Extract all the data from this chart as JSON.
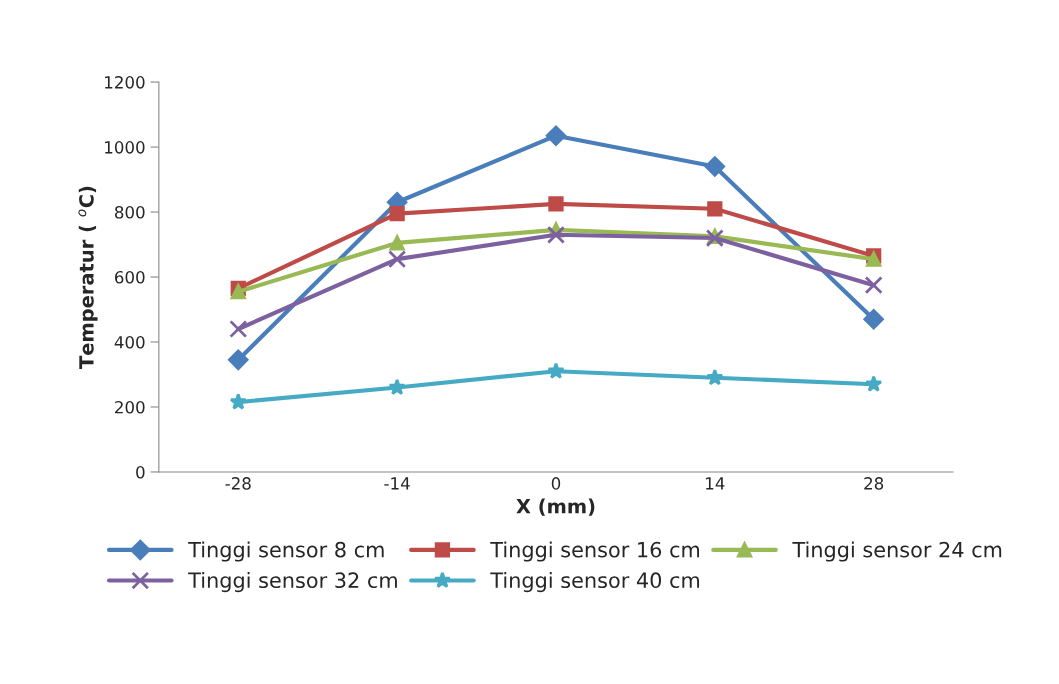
{
  "chart_data": {
    "type": "line",
    "xlabel": "X (mm)",
    "ylabel": "Temperatur ( $^{o}$C)",
    "categories": [
      "-28",
      "-14",
      "0",
      "14",
      "28"
    ],
    "series": [
      {
        "name": "Tinggi sensor 8 cm",
        "color": "#4a7ebb",
        "marker": "diamond",
        "values": [
          345,
          830,
          1035,
          940,
          470
        ]
      },
      {
        "name": "Tinggi sensor 16 cm",
        "color": "#be4b48",
        "marker": "square",
        "values": [
          565,
          795,
          825,
          810,
          665
        ]
      },
      {
        "name": "Tinggi sensor 24 cm",
        "color": "#98b954",
        "marker": "triangle",
        "values": [
          555,
          705,
          745,
          725,
          655
        ]
      },
      {
        "name": "Tinggi sensor 32 cm",
        "color": "#7d60a0",
        "marker": "cross",
        "values": [
          440,
          655,
          730,
          720,
          575
        ]
      },
      {
        "name": "Tinggi sensor 40 cm",
        "color": "#46aac5",
        "marker": "star",
        "values": [
          215,
          260,
          310,
          290,
          270
        ]
      }
    ],
    "ylim": [
      0,
      1200
    ],
    "yticks": [
      0,
      200,
      400,
      600,
      800,
      1000,
      1200
    ],
    "grid": false,
    "legend": "bottom",
    "line_style": "solid"
  }
}
